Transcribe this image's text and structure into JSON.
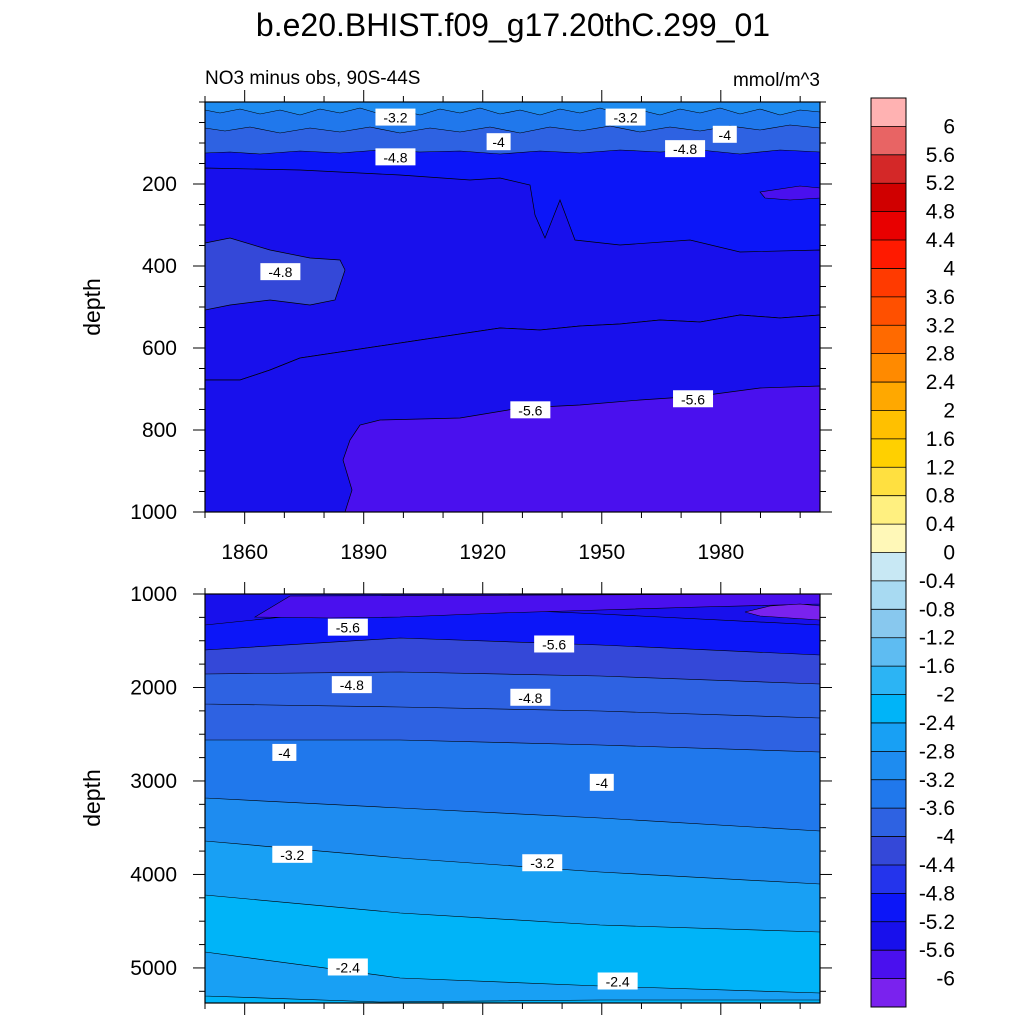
{
  "figure": {
    "title": "b.e20.BHIST.f09_g17.20thC.299_01",
    "subtitle_left": "NO3 minus obs, 90S-44S",
    "subtitle_right": "mmol/m^3"
  },
  "colorbar": {
    "levels": [
      "6",
      "5.6",
      "5.2",
      "4.8",
      "4.4",
      "4",
      "3.6",
      "3.2",
      "2.8",
      "2.4",
      "2",
      "1.6",
      "1.2",
      "0.8",
      "0.4",
      "0",
      "-0.4",
      "-0.8",
      "-1.2",
      "-1.6",
      "-2",
      "-2.4",
      "-2.8",
      "-3.2",
      "-3.6",
      "-4",
      "-4.4",
      "-4.8",
      "-5.2",
      "-5.6",
      "-6"
    ],
    "colors": [
      "#ffb2b2",
      "#e86464",
      "#d42828",
      "#d00000",
      "#e80000",
      "#ff1a00",
      "#ff3a00",
      "#ff5000",
      "#ff6a00",
      "#ff8a00",
      "#ffa800",
      "#ffc000",
      "#ffd000",
      "#ffe040",
      "#fff080",
      "#fff8b8",
      "#c8e8f4",
      "#a8daf2",
      "#88c8ee",
      "#5ebcf2",
      "#2cb4f4",
      "#00b4f8",
      "#18a0f4",
      "#1e8cf0",
      "#2078ec",
      "#2e62e2",
      "#3448d8",
      "#2434ec",
      "#0c16f8",
      "#1810ec",
      "#4a10ee",
      "#7a22ee"
    ]
  },
  "chart_data": [
    {
      "type": "heatmap",
      "panel": "upper",
      "x_ticks": [
        1860,
        1890,
        1920,
        1950,
        1980
      ],
      "xlim": [
        1850,
        2005
      ],
      "ylabel": "depth",
      "y_ticks": [
        200,
        400,
        600,
        800,
        1000
      ],
      "ylim": [
        0,
        1000
      ],
      "y_reversed": true,
      "contour_labels": [
        {
          "text": "-3.2",
          "x": 1898,
          "y": 38
        },
        {
          "text": "-3.2",
          "x": 1956,
          "y": 38
        },
        {
          "text": "-4",
          "x": 1924,
          "y": 98
        },
        {
          "text": "-4",
          "x": 1981,
          "y": 80
        },
        {
          "text": "-4.8",
          "x": 1898,
          "y": 135
        },
        {
          "text": "-4.8",
          "x": 1971,
          "y": 115
        },
        {
          "text": "-4.8",
          "x": 1869,
          "y": 415
        },
        {
          "text": "-5.6",
          "x": 1932,
          "y": 752
        },
        {
          "text": "-5.6",
          "x": 1973,
          "y": 725
        }
      ]
    },
    {
      "type": "heatmap",
      "panel": "lower",
      "ylabel": "depth",
      "y_ticks": [
        1000,
        2000,
        3000,
        4000,
        5000
      ],
      "ylim": [
        1000,
        5375
      ],
      "y_reversed": true,
      "contour_labels": [
        {
          "text": "-5.6",
          "x": 1886,
          "y": 1360
        },
        {
          "text": "-5.6",
          "x": 1938,
          "y": 1540
        },
        {
          "text": "-4.8",
          "x": 1887,
          "y": 1975
        },
        {
          "text": "-4.8",
          "x": 1932,
          "y": 2110
        },
        {
          "text": "-4",
          "x": 1870,
          "y": 2700
        },
        {
          "text": "-4",
          "x": 1950,
          "y": 3020
        },
        {
          "text": "-3.2",
          "x": 1872,
          "y": 3790
        },
        {
          "text": "-3.2",
          "x": 1935,
          "y": 3880
        },
        {
          "text": "-2.4",
          "x": 1886,
          "y": 4995
        },
        {
          "text": "-2.4",
          "x": 1954,
          "y": 5145
        }
      ]
    }
  ]
}
